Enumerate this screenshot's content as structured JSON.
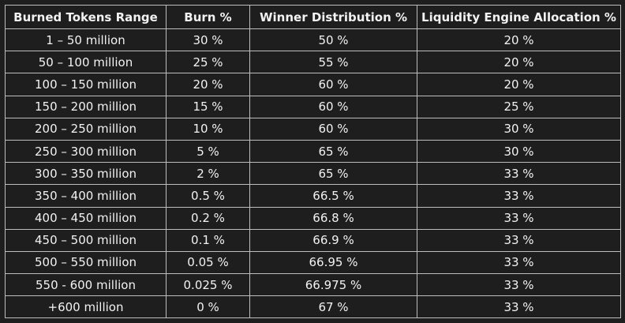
{
  "table": {
    "headers": [
      "Burned Tokens Range",
      "Burn %",
      "Winner Distribution %",
      "Liquidity Engine Allocation %"
    ],
    "rows": [
      [
        "1 – 50 million",
        "30 %",
        "50 %",
        "20 %"
      ],
      [
        "50 – 100 million",
        "25 %",
        "55 %",
        "20 %"
      ],
      [
        "100 – 150 million",
        "20 %",
        "60 %",
        "20 %"
      ],
      [
        "150 – 200 million",
        "15 %",
        "60 %",
        "25 %"
      ],
      [
        "200 – 250 million",
        "10 %",
        "60 %",
        "30 %"
      ],
      [
        "250 – 300 million",
        "5 %",
        "65 %",
        "30 %"
      ],
      [
        "300 – 350 million",
        "2 %",
        "65 %",
        "33 %"
      ],
      [
        "350 – 400 million",
        "0.5 %",
        "66.5 %",
        "33 %"
      ],
      [
        "400 – 450 million",
        "0.2 %",
        "66.8 %",
        "33 %"
      ],
      [
        "450 – 500 million",
        "0.1 %",
        "66.9 %",
        "33 %"
      ],
      [
        "500 – 550 million",
        "0.05 %",
        "66.95 %",
        "33 %"
      ],
      [
        "550 - 600 million",
        "0.025 %",
        "66.975 %",
        "33 %"
      ],
      [
        "+600 million",
        "0 %",
        "67 %",
        "33 %"
      ]
    ]
  }
}
